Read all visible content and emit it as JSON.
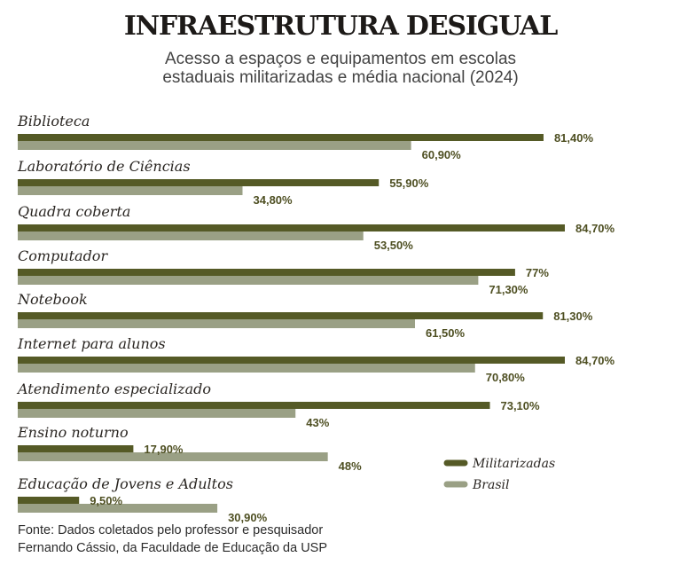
{
  "chart_data": {
    "type": "bar",
    "orientation": "horizontal",
    "title": "INFRAESTRUTURA DESIGUAL",
    "subtitle_lines": [
      "Acesso a espaços e equipamentos em escolas",
      "estaduais militarizadas e média nacional (2024)"
    ],
    "categories": [
      "Biblioteca",
      "Laboratório de Ciências",
      "Quadra coberta",
      "Computador",
      "Notebook",
      "Internet para alunos",
      "Atendimento especializado",
      "Ensino noturno",
      "Educação de Jovens e Adultos"
    ],
    "series": [
      {
        "name": "Militarizadas",
        "color": "#555a26",
        "values": [
          81.4,
          55.9,
          84.7,
          77,
          81.3,
          84.7,
          73.1,
          17.9,
          9.5
        ],
        "labels": [
          "81,40%",
          "55,90%",
          "84,70%",
          "77%",
          "81,30%",
          "84,70%",
          "73,10%",
          "17,90%",
          "9,50%"
        ]
      },
      {
        "name": "Brasil",
        "color": "#9aa085",
        "values": [
          60.9,
          34.8,
          53.5,
          71.3,
          61.5,
          70.8,
          43,
          48,
          30.9
        ],
        "labels": [
          "60,90%",
          "34,80%",
          "53,50%",
          "71,30%",
          "61,50%",
          "70,80%",
          "43%",
          "48%",
          "30,90%"
        ]
      }
    ],
    "xlabel": "",
    "ylabel": "",
    "xlim": [
      0,
      100
    ],
    "unit": "%",
    "grid": false,
    "legend_position": "bottom-right",
    "source_lines": [
      "Fonte: Dados coletados pelo professor e pesquisador",
      "Fernando Cássio, da Faculdade de Educação da USP"
    ]
  }
}
